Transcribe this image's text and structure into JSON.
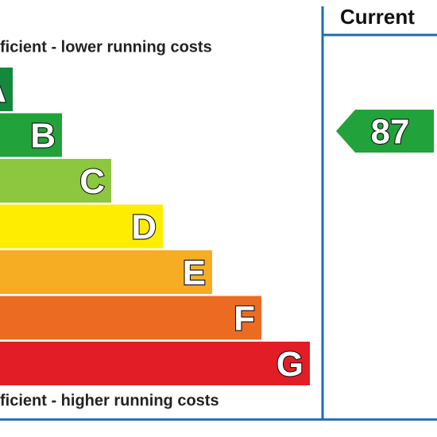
{
  "header": "Current",
  "top_note": "ficient - lower running costs",
  "bottom_note": "ficient - higher running costs",
  "bands": [
    {
      "letter": "A",
      "color": "#14893b"
    },
    {
      "letter": "B",
      "color": "#22a23b"
    },
    {
      "letter": "C",
      "color": "#8dc63f"
    },
    {
      "letter": "D",
      "color": "#ffed00"
    },
    {
      "letter": "E",
      "color": "#f6ad24"
    },
    {
      "letter": "F",
      "color": "#ec6b23"
    },
    {
      "letter": "G",
      "color": "#e21d26"
    }
  ],
  "current_rating": {
    "value": 87,
    "color": "#22a23b"
  }
}
